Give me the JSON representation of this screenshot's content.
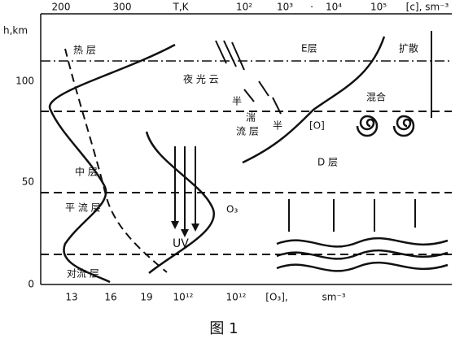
{
  "top_axis": {
    "labels": [
      "200",
      "300",
      "T,K",
      "10²",
      "10³",
      "·",
      "10⁴",
      "10⁵",
      "[c], sm⁻³"
    ]
  },
  "left_axis": {
    "title": "h,km",
    "labels": [
      "100",
      "50",
      "0"
    ]
  },
  "bottom_axis": {
    "labels": [
      "13",
      "16",
      "19",
      "10¹²",
      "10¹²",
      "[O₃],",
      "sm⁻³"
    ]
  },
  "regions": {
    "thermosphere": "热    层",
    "noctilucent": "夜 光 云",
    "e_layer": "E层",
    "diffusion": "扩散",
    "mixing": "混合",
    "atomic_o": "[O]",
    "turb1": "半",
    "turb2": "湍",
    "turb3": "流 层",
    "turb4": "半",
    "d_layer": "D 层",
    "mesosphere": "中    层",
    "stratosphere": "平 流 层",
    "ozone": "O₃",
    "uv": "UV",
    "troposphere": "对流    层"
  },
  "caption": "图 1"
}
